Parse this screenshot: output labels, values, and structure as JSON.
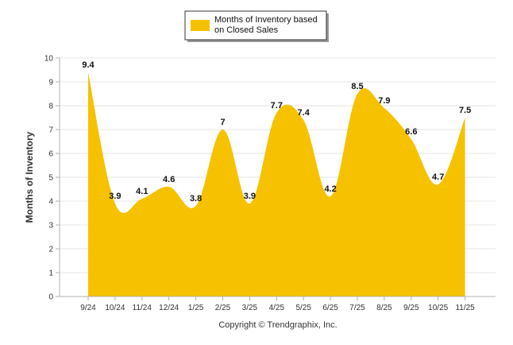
{
  "chart_data": {
    "type": "area",
    "categories": [
      "9/24",
      "10/24",
      "11/24",
      "12/24",
      "1/25",
      "2/25",
      "3/25",
      "4/25",
      "5/25",
      "6/25",
      "7/25",
      "8/25",
      "9/25",
      "10/25",
      "11/25"
    ],
    "series": [
      {
        "name": "Months of Inventory based on Closed Sales",
        "values": [
          9.4,
          3.9,
          4.1,
          4.6,
          3.8,
          7,
          3.9,
          7.7,
          7.4,
          4.2,
          8.5,
          7.9,
          6.6,
          4.7,
          7.5
        ]
      }
    ],
    "value_labels": [
      "9.4",
      "3.9",
      "4.1",
      "4.6",
      "3.8",
      "7",
      "3.9",
      "7.7",
      "7.4",
      "4.2",
      "8.5",
      "7.9",
      "6.6",
      "4.7",
      "7.5"
    ],
    "y_ticks": [
      "0",
      "1",
      "2",
      "3",
      "4",
      "5",
      "6",
      "7",
      "8",
      "9",
      "10"
    ],
    "ylim": [
      0,
      10
    ],
    "ylabel": "Months of Inventory",
    "xlabel": "",
    "grid": true,
    "legend": {
      "label_line1": "Months of Inventory based",
      "label_line2": "on Closed Sales",
      "position": "top-center"
    },
    "colors": {
      "fill": "#F6C200",
      "grid": "#E4E4E4",
      "axis": "#B0B0B0"
    }
  },
  "footer": {
    "copyright": "Copyright © Trendgraphix, Inc."
  }
}
